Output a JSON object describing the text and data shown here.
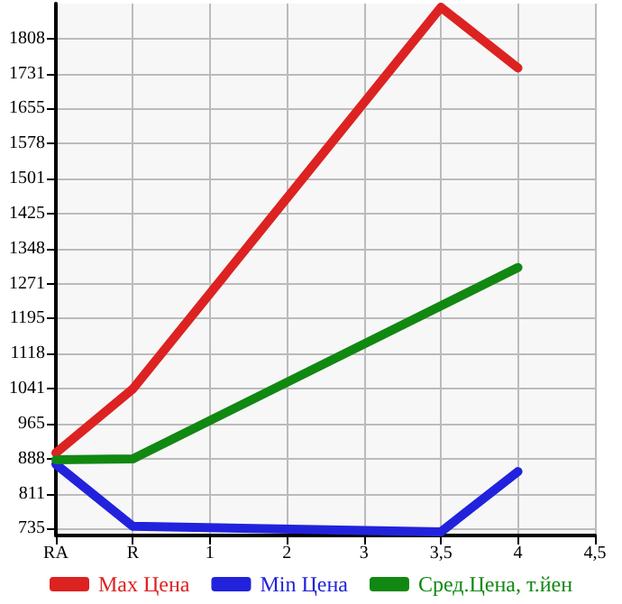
{
  "chart_data": {
    "type": "line",
    "categories": [
      "RA",
      "R",
      "1",
      "2",
      "3",
      "3,5",
      "4",
      "4,5"
    ],
    "series": [
      {
        "name": "Max Цена",
        "color": "#dd2222",
        "values": [
          901,
          1041,
          null,
          null,
          null,
          1877,
          1744,
          null
        ]
      },
      {
        "name": "Min Цена",
        "color": "#2222dd",
        "values": [
          876,
          740,
          null,
          null,
          null,
          728,
          860,
          null
        ]
      },
      {
        "name": "Сред.Цена, т.йен",
        "color": "#118811",
        "values": [
          886,
          888,
          null,
          null,
          null,
          null,
          1307,
          null
        ]
      }
    ],
    "ylim": [
      720,
      1885
    ],
    "yticks": [
      735,
      811,
      888,
      965,
      1041,
      1118,
      1195,
      1271,
      1348,
      1425,
      1501,
      1578,
      1655,
      1731,
      1808
    ],
    "grid": true,
    "legend": "bottom",
    "marker": "none",
    "line_style": "solid"
  }
}
